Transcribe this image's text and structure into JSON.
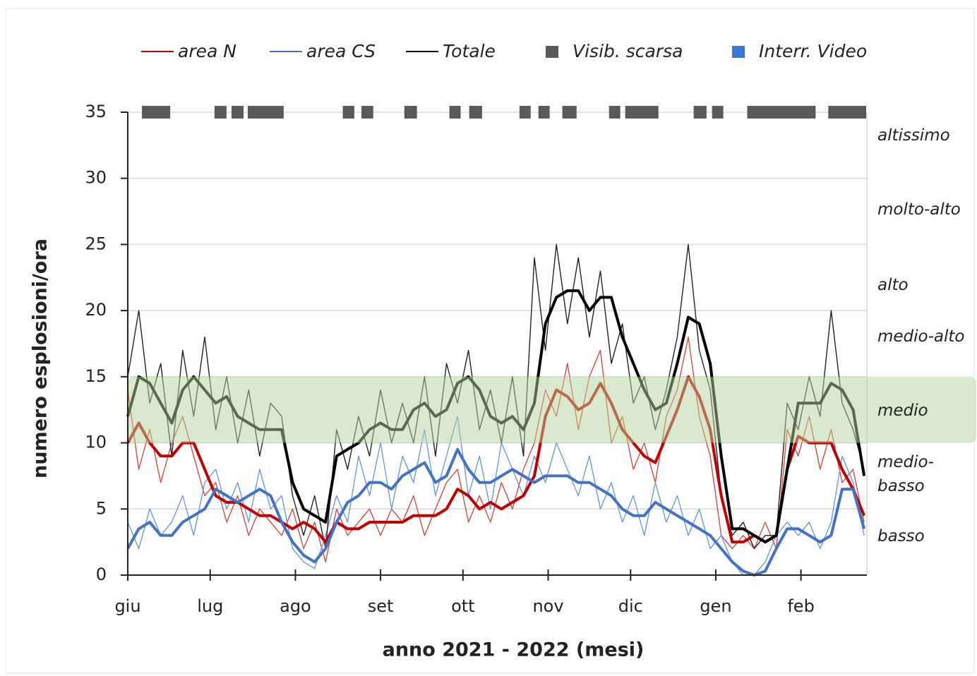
{
  "chart_data": {
    "type": "line",
    "x_label": "anno 2021 - 2022 (mesi)",
    "y_label": "numero esplosioni/ora",
    "x": [
      0,
      4,
      8,
      12,
      16,
      20,
      24,
      28,
      32,
      36,
      40,
      44,
      48,
      52,
      56,
      60,
      64,
      68,
      72,
      76,
      80,
      84,
      88,
      92,
      96,
      100,
      104,
      108,
      112,
      116,
      120,
      124,
      128,
      132,
      136,
      140,
      144,
      148,
      152,
      156,
      160,
      164,
      168,
      172,
      176,
      180,
      184,
      188,
      192,
      196,
      200,
      204,
      208,
      212,
      216,
      220,
      224,
      228,
      232,
      236,
      240,
      244,
      248,
      252,
      256,
      260,
      264,
      268
    ],
    "xlim": [
      0,
      269
    ],
    "xticks": [
      {
        "value": 0,
        "label": "giu"
      },
      {
        "value": 30,
        "label": "lug"
      },
      {
        "value": 61,
        "label": "ago"
      },
      {
        "value": 92,
        "label": "set"
      },
      {
        "value": 122,
        "label": "ott"
      },
      {
        "value": 153,
        "label": "nov"
      },
      {
        "value": 183,
        "label": "dic"
      },
      {
        "value": 214,
        "label": "gen"
      },
      {
        "value": 245,
        "label": "feb"
      }
    ],
    "ylim": [
      0,
      35
    ],
    "yticks": [
      0,
      5,
      10,
      15,
      20,
      25,
      30,
      35
    ],
    "grid": true,
    "series": [
      {
        "name": "area N",
        "color": "#c00000",
        "daily_color": "#d64a3f",
        "values": [
          10,
          11.5,
          10,
          9,
          9,
          10,
          10,
          8,
          6,
          5.5,
          5.5,
          5,
          4.5,
          4.5,
          4,
          3.5,
          4,
          3.5,
          2.5,
          4,
          3.5,
          3.5,
          4,
          4,
          4,
          4,
          4.5,
          4.5,
          4.5,
          5,
          6.5,
          6,
          5,
          5.5,
          5,
          5.5,
          6,
          7.5,
          12,
          14,
          13.5,
          12.5,
          13,
          14.5,
          13,
          11,
          10,
          9,
          8.5,
          10.5,
          12.5,
          15,
          13.5,
          11,
          6,
          2.5,
          2.5,
          3,
          2.5,
          3,
          8,
          10.5,
          10,
          10,
          10,
          8,
          6.5,
          4.5
        ],
        "daily": [
          14,
          8,
          11,
          7,
          10,
          12,
          9,
          6,
          7,
          4,
          6,
          3,
          5,
          4,
          3,
          5,
          2,
          4,
          1,
          5,
          3,
          4,
          5,
          3,
          5,
          4,
          6,
          3,
          5,
          7,
          8,
          4,
          6,
          4,
          7,
          5,
          8,
          10,
          14,
          12,
          16,
          11,
          15,
          17,
          10,
          12,
          8,
          10,
          7,
          12,
          14,
          18,
          12,
          9,
          3,
          2,
          3,
          2,
          4,
          2,
          11,
          9,
          12,
          8,
          11,
          7,
          8,
          4
        ]
      },
      {
        "name": "area CS",
        "color": "#4472c4",
        "daily_color": "#6b9ae0",
        "values": [
          2,
          3.5,
          4,
          3,
          3,
          4,
          4.5,
          5,
          6.5,
          6,
          5.5,
          6,
          6.5,
          6,
          4,
          2.5,
          1.5,
          1,
          2,
          4,
          5.5,
          6,
          7,
          7,
          6.5,
          7.5,
          8,
          8.5,
          7,
          7.5,
          9.5,
          8,
          7,
          7,
          7.5,
          8,
          7.5,
          7,
          7.5,
          7.5,
          7.5,
          7,
          7,
          6.5,
          6,
          5,
          4.5,
          4.5,
          5.5,
          5,
          4.5,
          4,
          3.5,
          3,
          2,
          1,
          0.3,
          0,
          0.3,
          2,
          3.5,
          3.5,
          3,
          2.5,
          3,
          6.5,
          6.5,
          3.5
        ],
        "daily": [
          4,
          2,
          5,
          3,
          4,
          6,
          3,
          7,
          8,
          5,
          7,
          4,
          8,
          5,
          6,
          2,
          1,
          0.5,
          3,
          6,
          4,
          9,
          6,
          10,
          5,
          9,
          7,
          11,
          6,
          9,
          12,
          6,
          9,
          5,
          10,
          8,
          6,
          9,
          7,
          10,
          8,
          6,
          9,
          5,
          7,
          4,
          6,
          3,
          7,
          4,
          6,
          3,
          5,
          2,
          3,
          1,
          0,
          0,
          1,
          3,
          4,
          3,
          4,
          2,
          4,
          9,
          7,
          3
        ]
      },
      {
        "name": "Totale",
        "color": "#000000",
        "daily_color": "#222222",
        "values": [
          12,
          15,
          14.5,
          13,
          11.5,
          14,
          15,
          14,
          13,
          13.5,
          12,
          11.5,
          11,
          11,
          11,
          7,
          5,
          4.5,
          4,
          9,
          9.5,
          10,
          11,
          11.5,
          11,
          11,
          12.5,
          13,
          12,
          12.5,
          14.5,
          15,
          14,
          12,
          11.5,
          12,
          11,
          13,
          19,
          21,
          21.5,
          21.5,
          20,
          21,
          21,
          18,
          16,
          14,
          12.5,
          13,
          16,
          19.5,
          19,
          16,
          9,
          3.5,
          3.5,
          3,
          2.5,
          3,
          8,
          13,
          13,
          13,
          14.5,
          14,
          12.5,
          7.5
        ],
        "daily": [
          15,
          20,
          13,
          16,
          9,
          17,
          12,
          18,
          11,
          15,
          10,
          14,
          9,
          13,
          12,
          6,
          3,
          6,
          2,
          11,
          8,
          12,
          9,
          14,
          10,
          13,
          10,
          15,
          9,
          16,
          13,
          17,
          11,
          14,
          10,
          15,
          9,
          24,
          17,
          25,
          19,
          24,
          18,
          23,
          16,
          19,
          13,
          15,
          11,
          14,
          18,
          25,
          17,
          14,
          6,
          3,
          4,
          2,
          3,
          3,
          13,
          11,
          15,
          12,
          20,
          13,
          11,
          8
        ]
      }
    ],
    "markers": [
      {
        "name": "Visib. scarsa",
        "color": "#595959",
        "intervals": [
          [
            4.9,
            15.7
          ],
          [
            31.3,
            36.2
          ],
          [
            37.5,
            42.4
          ],
          [
            43.4,
            57
          ],
          [
            78,
            82.7
          ],
          [
            84.8,
            89.6
          ],
          [
            100.4,
            105.5
          ],
          [
            116.8,
            121.4
          ],
          [
            124,
            129.2
          ],
          [
            142.3,
            146.9
          ],
          [
            149.2,
            153.8
          ],
          [
            157.9,
            163.6
          ],
          [
            174.9,
            179.5
          ],
          [
            180.8,
            193.4
          ],
          [
            205.7,
            210.9
          ],
          [
            212.4,
            217
          ],
          [
            225.2,
            250.6
          ],
          [
            254.7,
            269
          ]
        ]
      },
      {
        "name": "Interr. Video",
        "color": "#3a78d8",
        "intervals": []
      }
    ],
    "band": {
      "from": 10,
      "to": 15,
      "color": "#b4d49b"
    },
    "levels": [
      {
        "lines": [
          "altissimo"
        ],
        "y": 33.2
      },
      {
        "lines": [
          "molto-alto"
        ],
        "y": 27.6
      },
      {
        "lines": [
          "alto"
        ],
        "y": 21.9
      },
      {
        "lines": [
          "medio-alto"
        ],
        "y": 18
      },
      {
        "lines": [
          "medio"
        ],
        "y": 12.4
      },
      {
        "lines": [
          "medio-",
          "basso"
        ],
        "y": 7.6
      },
      {
        "lines": [
          "basso"
        ],
        "y": 2.9
      }
    ]
  }
}
